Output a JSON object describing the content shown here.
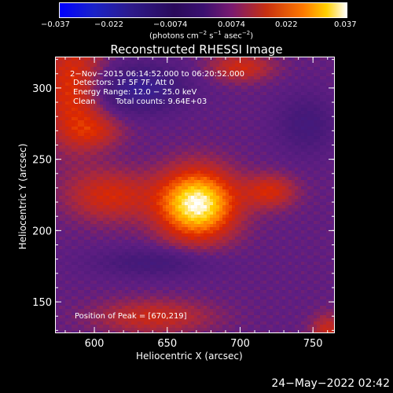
{
  "colorbar": {
    "ticks": [
      "−0.037",
      "−0.022",
      "−0.0074",
      "0.0074",
      "0.022",
      "0.037"
    ],
    "units_prefix": "(photons cm",
    "units_sup1": "−2",
    "units_mid": " s",
    "units_sup2": "−1",
    "units_mid2": " asec",
    "units_sup3": "−2",
    "units_suffix": ")"
  },
  "chart_data": {
    "type": "heatmap",
    "title": "Reconstructed RHESSI Image",
    "xlabel": "Heliocentric X (arcsec)",
    "ylabel": "Heliocentric Y (arcsec)",
    "xlim": [
      573,
      765
    ],
    "ylim": [
      128,
      322
    ],
    "x_ticks": [
      600,
      650,
      700,
      750
    ],
    "y_ticks": [
      150,
      200,
      250,
      300
    ],
    "color_range": [
      -0.037,
      0.037
    ],
    "peak": [
      670,
      219
    ],
    "annotations": {
      "time": "2−Nov−2015 06:14:52.000 to 06:20:52.000",
      "detectors": "Detectors: 1F 5F 7F, Att 0",
      "energy": "Energy Range: 12.0 − 25.0 keV",
      "clean": "Clean",
      "counts": "Total counts: 9.64E+03",
      "peak_text": "Position of Peak = [670,219]"
    }
  },
  "footer": {
    "date": "24−May−2022 02:42"
  }
}
